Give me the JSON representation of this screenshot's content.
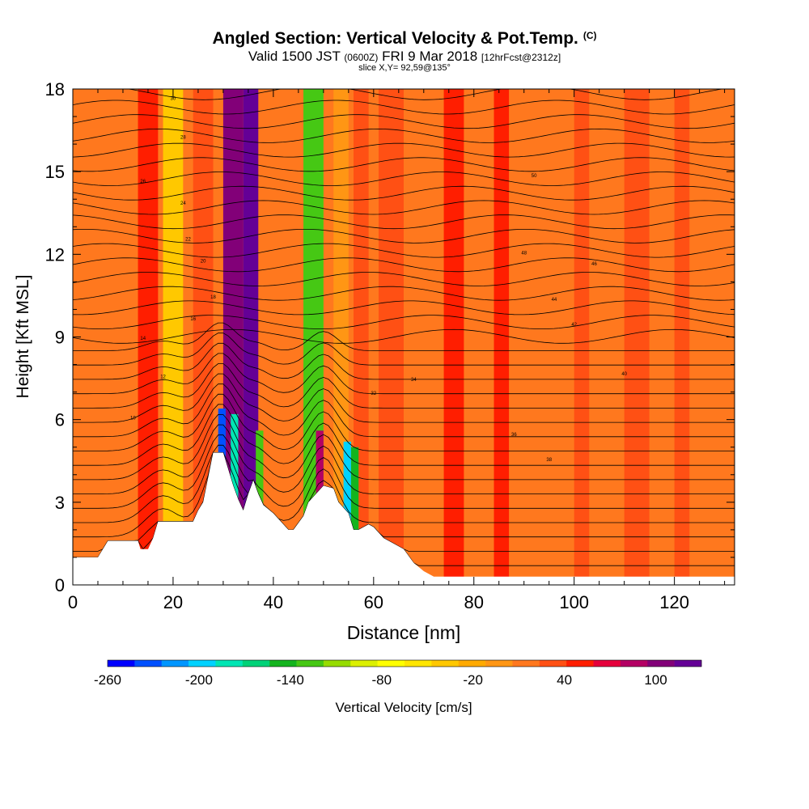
{
  "header": {
    "title": "Angled Section: Vertical Velocity & Pot.Temp.",
    "copyright": "(C)",
    "valid_prefix": "Valid 1500 JST",
    "valid_utc": "(0600Z)",
    "valid_date": "FRI 9 Mar 2018",
    "forecast": "[12hrFcst@2312z]",
    "slice": "slice X,Y= 92,59@135°"
  },
  "chart_data": {
    "type": "heatmap",
    "xlabel": "Distance [nm]",
    "ylabel": "Height [Kft MSL]",
    "xlim": [
      0,
      132
    ],
    "ylim": [
      0,
      18
    ],
    "x_ticks": [
      0,
      20,
      40,
      60,
      80,
      100,
      120
    ],
    "y_ticks": [
      0,
      3,
      6,
      9,
      12,
      15,
      18
    ],
    "colorbar": {
      "label": "Vertical Velocity [cm/s]",
      "ticks": [
        -260,
        -200,
        -140,
        -80,
        -20,
        40,
        100
      ],
      "range": [
        -260,
        130
      ],
      "colors": [
        "#0000ff",
        "#0050ff",
        "#0096ff",
        "#00d2ff",
        "#00e6b4",
        "#00d278",
        "#14b41e",
        "#46c814",
        "#96dc00",
        "#dcf000",
        "#ffff00",
        "#ffe600",
        "#ffc800",
        "#ffaa00",
        "#ff9614",
        "#ff781e",
        "#ff5014",
        "#ff1e00",
        "#e6003c",
        "#b40064",
        "#820078",
        "#640096"
      ]
    },
    "bands": [
      {
        "x": 0,
        "w": 4,
        "v": 10
      },
      {
        "x": 13,
        "w": 4,
        "v": 45
      },
      {
        "x": 18,
        "w": 4,
        "v": -40
      },
      {
        "x": 24,
        "w": 4,
        "v": 40
      },
      {
        "x": 30,
        "w": 4,
        "v": 100
      },
      {
        "x": 34,
        "w": 3,
        "v": 120
      },
      {
        "x": 46,
        "w": 4,
        "v": -130
      },
      {
        "x": 52,
        "w": 3,
        "v": -10
      },
      {
        "x": 56,
        "w": 3,
        "v": 40
      },
      {
        "x": 61,
        "w": 5,
        "v": 40
      },
      {
        "x": 74,
        "w": 4,
        "v": 50
      },
      {
        "x": 84,
        "w": 3,
        "v": 45
      },
      {
        "x": 100,
        "w": 3,
        "v": 35
      },
      {
        "x": 110,
        "w": 5,
        "v": 40
      },
      {
        "x": 120,
        "w": 3,
        "v": 30
      }
    ],
    "terrain_nm": [
      0,
      1.0,
      5,
      1.0,
      6,
      1.3,
      7,
      1.6,
      13,
      1.6,
      13.5,
      1.3,
      15,
      1.3,
      16,
      1.7,
      17,
      2.3,
      24,
      2.3,
      25,
      2.7,
      26,
      3.0,
      27,
      3.9,
      28,
      4.8,
      30,
      4.8,
      31,
      4.2,
      32,
      3.6,
      33,
      3.1,
      34,
      2.7,
      35,
      3.3,
      36,
      3.8,
      37,
      3.3,
      38,
      2.9,
      40,
      2.6,
      42,
      2.2,
      43,
      2.0,
      44,
      2.0,
      46,
      2.5,
      47,
      3.0,
      50,
      3.6,
      52,
      3.5,
      53,
      3.0,
      55,
      2.6,
      56,
      2.0,
      57,
      2.0,
      59,
      2.2,
      60,
      2.1,
      62,
      1.7,
      64,
      1.5,
      66,
      1.3,
      68,
      0.8,
      70,
      0.5,
      72,
      0.3,
      75,
      0.3,
      132,
      0.3
    ],
    "theta_labels": [
      "10",
      "12",
      "14",
      "16",
      "18",
      "20",
      "22",
      "24",
      "26",
      "28",
      "30",
      "32",
      "34",
      "36",
      "38",
      "40",
      "42",
      "44",
      "46",
      "48",
      "50"
    ]
  }
}
